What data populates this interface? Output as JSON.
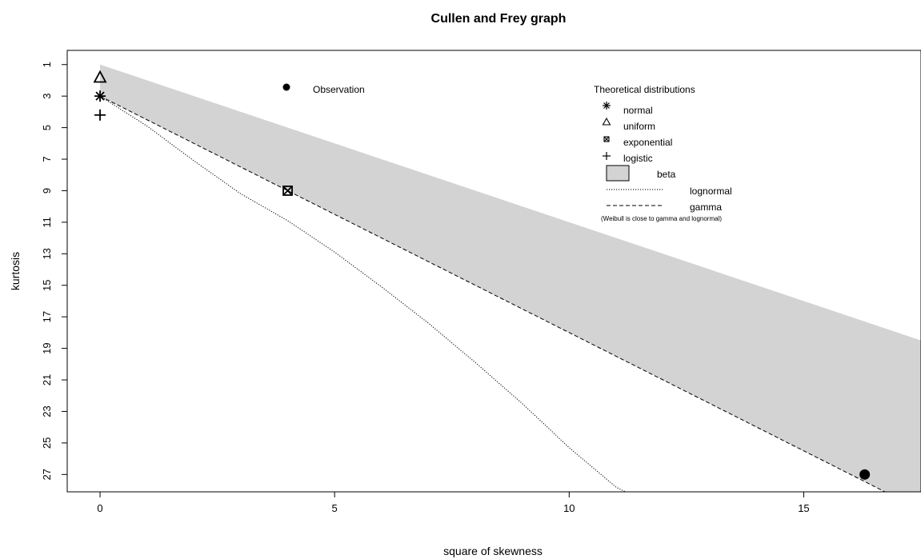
{
  "chart_data": {
    "type": "scatter",
    "title": "Cullen and Frey graph",
    "xlabel": "square of skewness",
    "ylabel": "kurtosis",
    "xlim": [
      -0.7,
      17.5
    ],
    "ylim": [
      28.1,
      0.1
    ],
    "y_inverted": true,
    "x_ticks": [
      0,
      5,
      10,
      15
    ],
    "y_ticks": [
      1,
      3,
      5,
      7,
      9,
      11,
      13,
      15,
      17,
      19,
      21,
      23,
      25,
      27
    ],
    "observation": {
      "label": "Observation",
      "x": 16.3,
      "y": 27.0
    },
    "theoretical_points": [
      {
        "name": "normal",
        "x": 0,
        "y": 3,
        "symbol": "asterisk"
      },
      {
        "name": "uniform",
        "x": 0,
        "y": 1.8,
        "symbol": "triangle"
      },
      {
        "name": "exponential",
        "x": 4,
        "y": 9,
        "symbol": "boxed-x"
      },
      {
        "name": "logistic",
        "x": 0,
        "y": 4.2,
        "symbol": "plus"
      }
    ],
    "beta_region": {
      "name": "beta",
      "color": "#d3d3d3",
      "upper_line": {
        "slope": 1,
        "intercept": 1
      },
      "lower_line": {
        "slope": 1.5,
        "intercept": 3
      }
    },
    "gamma_line": {
      "name": "gamma",
      "slope": 1.5,
      "intercept": 3,
      "style": "dashed"
    },
    "lognormal_line": {
      "name": "lognormal",
      "style": "dotted",
      "points": [
        [
          0,
          3
        ],
        [
          1,
          4.9
        ],
        [
          2,
          7.1
        ],
        [
          3,
          9.2
        ],
        [
          4,
          10.9
        ],
        [
          5,
          12.9
        ],
        [
          6,
          15.1
        ],
        [
          7,
          17.4
        ],
        [
          8,
          19.9
        ],
        [
          9,
          22.5
        ],
        [
          10,
          25.3
        ],
        [
          11,
          27.8
        ],
        [
          11.2,
          28.1
        ]
      ]
    },
    "legend": {
      "title": "Theoretical distributions",
      "position": "top-right",
      "entries": [
        "normal",
        "uniform",
        "exponential",
        "logistic",
        "beta",
        "lognormal",
        "gamma"
      ],
      "note": "(Weibull is close to gamma and lognormal)"
    }
  }
}
